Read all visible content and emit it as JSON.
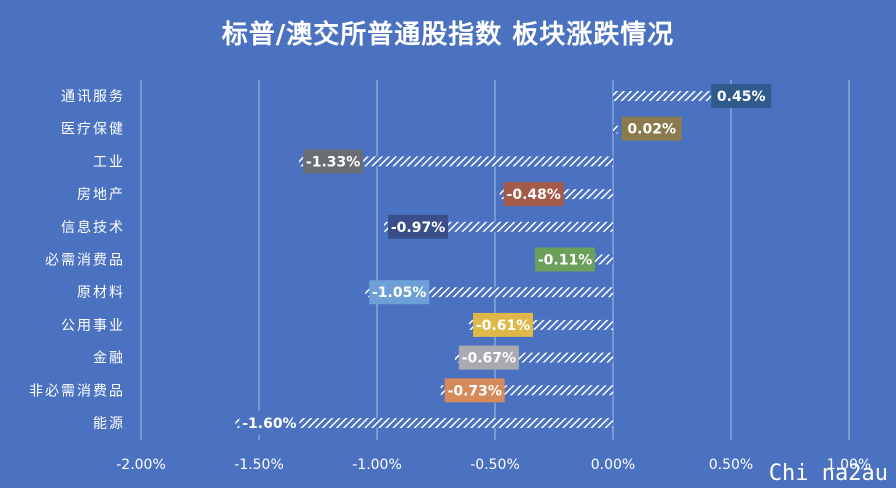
{
  "chart_data": {
    "type": "bar",
    "orientation": "horizontal",
    "title": "标普/澳交所普通股指数 板块涨跌情况",
    "categories": [
      "通讯服务",
      "医疗保健",
      "工业",
      "房地产",
      "信息技术",
      "必需消费品",
      "原材料",
      "公用事业",
      "金融",
      "非必需消费品",
      "能源"
    ],
    "values": [
      0.45,
      0.02,
      -1.33,
      -0.48,
      -0.97,
      -0.11,
      -1.05,
      -0.61,
      -0.67,
      -0.73,
      -1.6
    ],
    "data_labels": [
      "0.45%",
      "0.02%",
      "-1.33%",
      "-0.48%",
      "-0.97%",
      "-0.11%",
      "-1.05%",
      "-0.61%",
      "-0.67%",
      "-0.73%",
      "-1.60%"
    ],
    "label_colors": [
      "#2e5a8c",
      "#8a7a4e",
      "#6a6e74",
      "#a35a48",
      "#3a4e8a",
      "#6aa05a",
      "#6ea0d8",
      "#e0b84a",
      "#a8aab0",
      "#d68a5a",
      "#4a72c0"
    ],
    "xlim": [
      -2.0,
      1.0
    ],
    "xticks": [
      -2.0,
      -1.5,
      -1.0,
      -0.5,
      0.0,
      0.5,
      1.0
    ],
    "xtick_labels": [
      "-2.00%",
      "-1.50%",
      "-1.00%",
      "-0.50%",
      "0.00%",
      "0.50%",
      "1.00%"
    ],
    "grid": true,
    "legend": "none",
    "bar_pattern": "white diagonal hatch",
    "background": "#4a72c0"
  },
  "watermark": "Chi na2au"
}
